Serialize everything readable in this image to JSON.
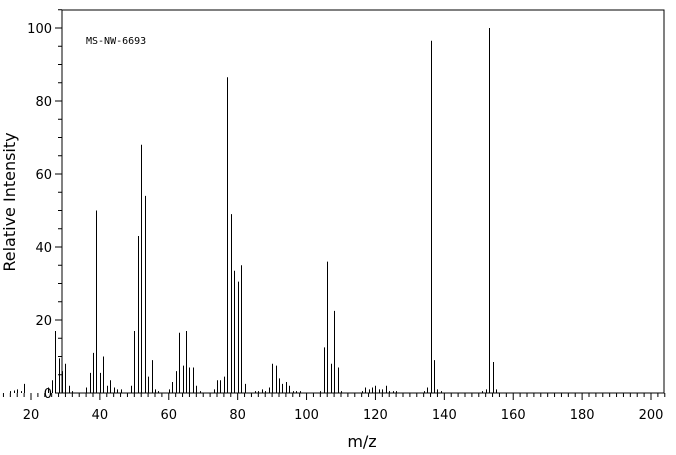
{
  "chart_data": {
    "type": "bar",
    "annotation": "MS-NW-6693",
    "xlabel": "m/z",
    "ylabel": "Relative Intensity",
    "xlim": [
      10,
      205
    ],
    "ylim": [
      0,
      105
    ],
    "x_ticks": [
      20,
      40,
      60,
      80,
      100,
      120,
      140,
      160,
      180,
      200
    ],
    "y_ticks": [
      0,
      20,
      40,
      60,
      80,
      100
    ],
    "grid": false,
    "series": [
      {
        "x": [
          14,
          15,
          16,
          17,
          18,
          25,
          26,
          27,
          28,
          29,
          30,
          31,
          32,
          36,
          37,
          38,
          39,
          40,
          41,
          42,
          43,
          44,
          45,
          46,
          49,
          50,
          51,
          52,
          53,
          54,
          55,
          56,
          57,
          60,
          61,
          62,
          63,
          64,
          65,
          66,
          67,
          68,
          69,
          73,
          74,
          75,
          76,
          77,
          78,
          79,
          80,
          81,
          82,
          85,
          86,
          87,
          88,
          89,
          90,
          91,
          92,
          93,
          94,
          95,
          96,
          97,
          98,
          104,
          105,
          106,
          107,
          108,
          109,
          110,
          116,
          117,
          118,
          119,
          120,
          121,
          122,
          123,
          124,
          125,
          126,
          134,
          135,
          136,
          137,
          138,
          139,
          151,
          152,
          153,
          154,
          155
        ],
        "values": [
          0.5,
          0.7,
          1.0,
          0.5,
          2.5,
          1.5,
          3.5,
          17.0,
          9.5,
          6.0,
          8.0,
          2.0,
          0.5,
          1.5,
          5.5,
          11.0,
          50.0,
          5.5,
          10.0,
          2.0,
          3.5,
          1.5,
          1.0,
          1.0,
          2.0,
          17.0,
          43.0,
          68.0,
          54.0,
          4.5,
          9.0,
          1.0,
          0.5,
          1.0,
          3.0,
          6.0,
          16.5,
          7.5,
          17.0,
          7.0,
          7.0,
          2.0,
          0.5,
          1.0,
          3.5,
          3.5,
          4.5,
          86.5,
          49.0,
          33.5,
          30.5,
          35.0,
          2.5,
          0.5,
          0.5,
          1.0,
          0.5,
          1.5,
          8.0,
          7.5,
          4.0,
          2.5,
          3.0,
          2.0,
          0.5,
          0.5,
          0.5,
          0.5,
          12.5,
          36.0,
          8.0,
          22.5,
          7.0,
          0.5,
          0.5,
          1.5,
          1.0,
          1.5,
          2.0,
          1.0,
          1.0,
          2.0,
          0.5,
          0.5,
          0.5,
          0.5,
          1.5,
          96.5,
          9.0,
          1.0,
          0.5,
          0.5,
          1.0,
          100.0,
          8.5,
          1.0
        ]
      }
    ]
  }
}
